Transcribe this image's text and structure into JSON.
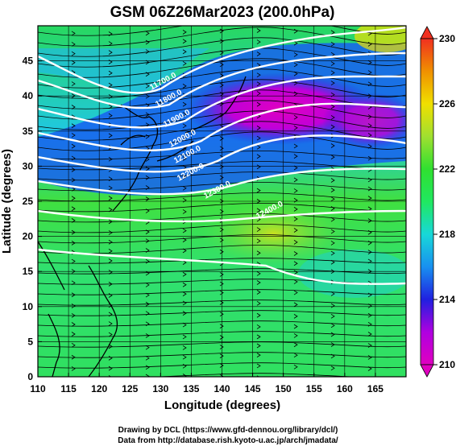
{
  "title": "GSM 06Z26Mar2023 (200.0hPa)",
  "x_axis": {
    "label": "Longitude (degrees)",
    "range": [
      110,
      170
    ],
    "ticks": [
      "110",
      "115",
      "120",
      "125",
      "130",
      "135",
      "140",
      "145",
      "150",
      "155",
      "160",
      "165"
    ]
  },
  "y_axis": {
    "label": "Latitude  (degrees)",
    "range": [
      0,
      50
    ],
    "ticks": [
      "0",
      "5",
      "10",
      "15",
      "20",
      "25",
      "30",
      "35",
      "40",
      "45"
    ]
  },
  "colorbar": {
    "range": [
      210,
      230
    ],
    "ticks": [
      "210",
      "214",
      "218",
      "222",
      "226",
      "230"
    ],
    "colors": [
      "#e000c0",
      "#b000e0",
      "#2020e0",
      "#1890f0",
      "#18d8d8",
      "#20e860",
      "#30e030",
      "#a0e030",
      "#f0e000",
      "#f09000",
      "#f03020"
    ]
  },
  "contours": [
    {
      "label": "11700.0"
    },
    {
      "label": "11800.0"
    },
    {
      "label": "11900.0"
    },
    {
      "label": "12000.0"
    },
    {
      "label": "12100.0"
    },
    {
      "label": "12200.0"
    },
    {
      "label": "12300.0"
    },
    {
      "label": "12400.0"
    }
  ],
  "credits": {
    "line1": "Drawing by DCL (https://www.gfd-dennou.org/library/dcl/)",
    "line2": "Data from http://database.rish.kyoto-u.ac.jp/arch/jmadata/"
  }
}
